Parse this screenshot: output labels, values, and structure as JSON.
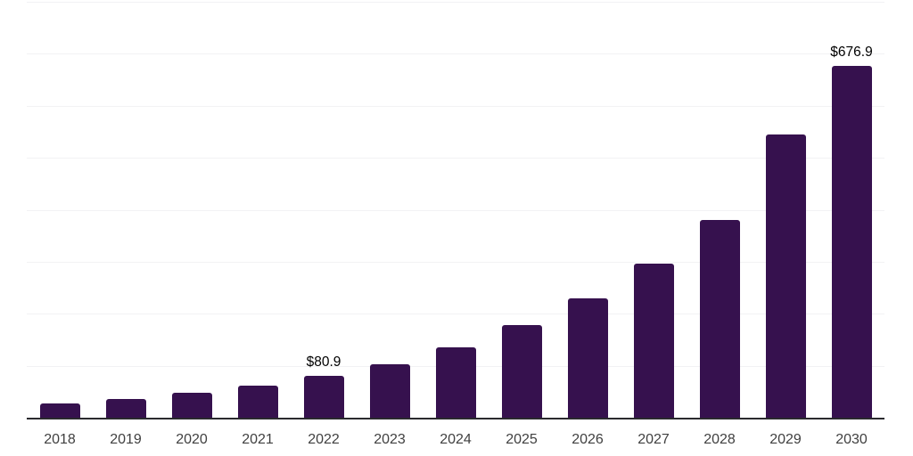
{
  "chart_data": {
    "type": "bar",
    "title": "",
    "xlabel": "",
    "ylabel": "",
    "categories": [
      "2018",
      "2019",
      "2020",
      "2021",
      "2022",
      "2023",
      "2024",
      "2025",
      "2026",
      "2027",
      "2028",
      "2029",
      "2030"
    ],
    "values": [
      26.9,
      36.6,
      47.5,
      61.7,
      80.9,
      102.8,
      135.3,
      178.2,
      229.6,
      296.4,
      380.1,
      545.0,
      676.9
    ],
    "data_labels": [
      {
        "category": "2022",
        "text": "$80.9"
      },
      {
        "category": "2030",
        "text": "$676.9"
      }
    ],
    "ylim": [
      0,
      800
    ],
    "gridline_step": 100,
    "grid": "horizontal",
    "legend": "none",
    "y_tick_labels_visible": false,
    "colors": {
      "bar": "#36114E",
      "axis_line": "#2A2A2E",
      "gridline": "#F2F2F4",
      "tick_label": "#404040",
      "data_label": "#000000",
      "background": "#FFFFFF"
    }
  }
}
